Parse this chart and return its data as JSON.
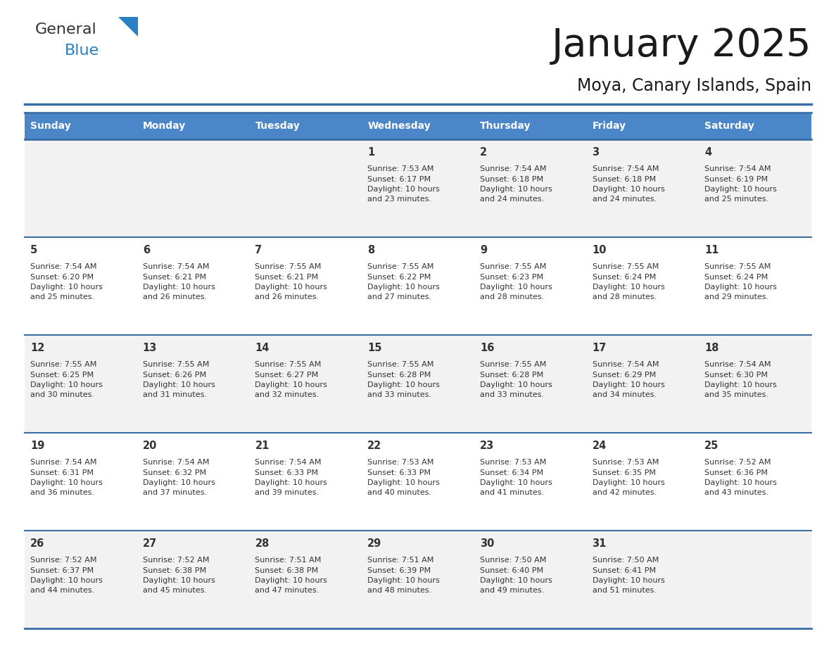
{
  "title": "January 2025",
  "subtitle": "Moya, Canary Islands, Spain",
  "header_bg": "#4a86c8",
  "header_text_color": "#ffffff",
  "cell_bg_week1": "#f2f2f2",
  "cell_bg_week2": "#ffffff",
  "cell_bg_week3": "#f2f2f2",
  "cell_bg_week4": "#ffffff",
  "cell_bg_week5": "#f2f2f2",
  "day_text_color": "#333333",
  "info_text_color": "#333333",
  "border_color": "#3a6ea5",
  "days_of_week": [
    "Sunday",
    "Monday",
    "Tuesday",
    "Wednesday",
    "Thursday",
    "Friday",
    "Saturday"
  ],
  "weeks": [
    [
      {
        "day": "",
        "info": ""
      },
      {
        "day": "",
        "info": ""
      },
      {
        "day": "",
        "info": ""
      },
      {
        "day": "1",
        "info": "Sunrise: 7:53 AM\nSunset: 6:17 PM\nDaylight: 10 hours\nand 23 minutes."
      },
      {
        "day": "2",
        "info": "Sunrise: 7:54 AM\nSunset: 6:18 PM\nDaylight: 10 hours\nand 24 minutes."
      },
      {
        "day": "3",
        "info": "Sunrise: 7:54 AM\nSunset: 6:18 PM\nDaylight: 10 hours\nand 24 minutes."
      },
      {
        "day": "4",
        "info": "Sunrise: 7:54 AM\nSunset: 6:19 PM\nDaylight: 10 hours\nand 25 minutes."
      }
    ],
    [
      {
        "day": "5",
        "info": "Sunrise: 7:54 AM\nSunset: 6:20 PM\nDaylight: 10 hours\nand 25 minutes."
      },
      {
        "day": "6",
        "info": "Sunrise: 7:54 AM\nSunset: 6:21 PM\nDaylight: 10 hours\nand 26 minutes."
      },
      {
        "day": "7",
        "info": "Sunrise: 7:55 AM\nSunset: 6:21 PM\nDaylight: 10 hours\nand 26 minutes."
      },
      {
        "day": "8",
        "info": "Sunrise: 7:55 AM\nSunset: 6:22 PM\nDaylight: 10 hours\nand 27 minutes."
      },
      {
        "day": "9",
        "info": "Sunrise: 7:55 AM\nSunset: 6:23 PM\nDaylight: 10 hours\nand 28 minutes."
      },
      {
        "day": "10",
        "info": "Sunrise: 7:55 AM\nSunset: 6:24 PM\nDaylight: 10 hours\nand 28 minutes."
      },
      {
        "day": "11",
        "info": "Sunrise: 7:55 AM\nSunset: 6:24 PM\nDaylight: 10 hours\nand 29 minutes."
      }
    ],
    [
      {
        "day": "12",
        "info": "Sunrise: 7:55 AM\nSunset: 6:25 PM\nDaylight: 10 hours\nand 30 minutes."
      },
      {
        "day": "13",
        "info": "Sunrise: 7:55 AM\nSunset: 6:26 PM\nDaylight: 10 hours\nand 31 minutes."
      },
      {
        "day": "14",
        "info": "Sunrise: 7:55 AM\nSunset: 6:27 PM\nDaylight: 10 hours\nand 32 minutes."
      },
      {
        "day": "15",
        "info": "Sunrise: 7:55 AM\nSunset: 6:28 PM\nDaylight: 10 hours\nand 33 minutes."
      },
      {
        "day": "16",
        "info": "Sunrise: 7:55 AM\nSunset: 6:28 PM\nDaylight: 10 hours\nand 33 minutes."
      },
      {
        "day": "17",
        "info": "Sunrise: 7:54 AM\nSunset: 6:29 PM\nDaylight: 10 hours\nand 34 minutes."
      },
      {
        "day": "18",
        "info": "Sunrise: 7:54 AM\nSunset: 6:30 PM\nDaylight: 10 hours\nand 35 minutes."
      }
    ],
    [
      {
        "day": "19",
        "info": "Sunrise: 7:54 AM\nSunset: 6:31 PM\nDaylight: 10 hours\nand 36 minutes."
      },
      {
        "day": "20",
        "info": "Sunrise: 7:54 AM\nSunset: 6:32 PM\nDaylight: 10 hours\nand 37 minutes."
      },
      {
        "day": "21",
        "info": "Sunrise: 7:54 AM\nSunset: 6:33 PM\nDaylight: 10 hours\nand 39 minutes."
      },
      {
        "day": "22",
        "info": "Sunrise: 7:53 AM\nSunset: 6:33 PM\nDaylight: 10 hours\nand 40 minutes."
      },
      {
        "day": "23",
        "info": "Sunrise: 7:53 AM\nSunset: 6:34 PM\nDaylight: 10 hours\nand 41 minutes."
      },
      {
        "day": "24",
        "info": "Sunrise: 7:53 AM\nSunset: 6:35 PM\nDaylight: 10 hours\nand 42 minutes."
      },
      {
        "day": "25",
        "info": "Sunrise: 7:52 AM\nSunset: 6:36 PM\nDaylight: 10 hours\nand 43 minutes."
      }
    ],
    [
      {
        "day": "26",
        "info": "Sunrise: 7:52 AM\nSunset: 6:37 PM\nDaylight: 10 hours\nand 44 minutes."
      },
      {
        "day": "27",
        "info": "Sunrise: 7:52 AM\nSunset: 6:38 PM\nDaylight: 10 hours\nand 45 minutes."
      },
      {
        "day": "28",
        "info": "Sunrise: 7:51 AM\nSunset: 6:38 PM\nDaylight: 10 hours\nand 47 minutes."
      },
      {
        "day": "29",
        "info": "Sunrise: 7:51 AM\nSunset: 6:39 PM\nDaylight: 10 hours\nand 48 minutes."
      },
      {
        "day": "30",
        "info": "Sunrise: 7:50 AM\nSunset: 6:40 PM\nDaylight: 10 hours\nand 49 minutes."
      },
      {
        "day": "31",
        "info": "Sunrise: 7:50 AM\nSunset: 6:41 PM\nDaylight: 10 hours\nand 51 minutes."
      },
      {
        "day": "",
        "info": ""
      }
    ]
  ],
  "logo_color_general": "#333333",
  "logo_color_blue": "#2b7fc3",
  "logo_triangle_color": "#2b7fc3",
  "fig_width": 11.88,
  "fig_height": 9.18,
  "dpi": 100
}
